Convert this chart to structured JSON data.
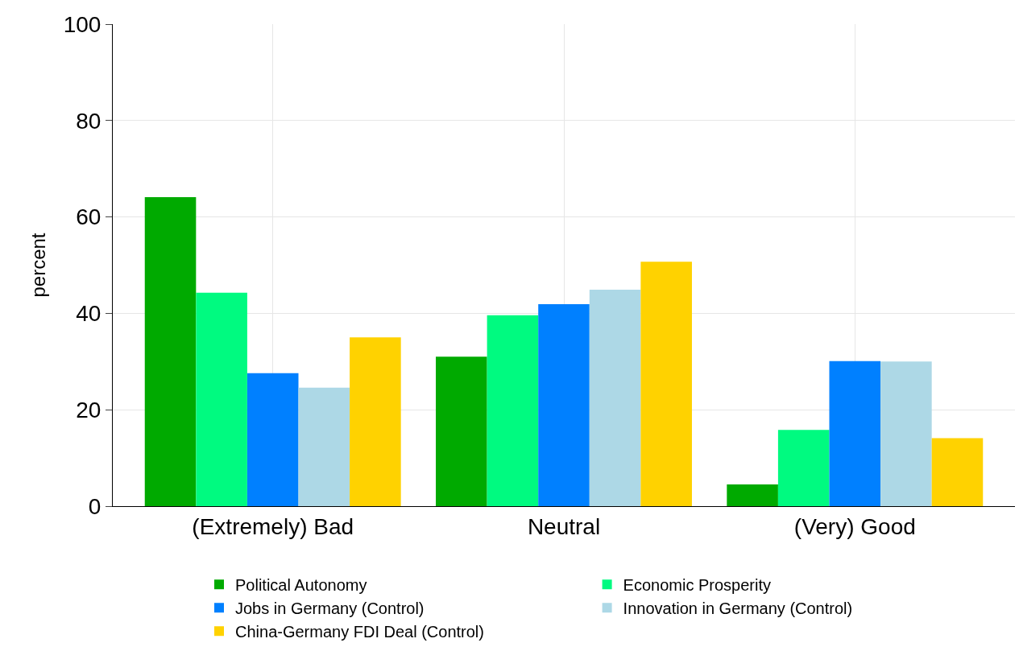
{
  "chart_data": {
    "type": "bar",
    "ylabel": "percent",
    "categories": [
      "(Extremely) Bad",
      "Neutral",
      "(Very) Good"
    ],
    "series": [
      {
        "name": "Political Autonomy",
        "color": "#00aa00",
        "values": [
          64.1,
          31.0,
          4.5
        ]
      },
      {
        "name": "Economic Prosperity",
        "color": "#00fa80",
        "values": [
          44.3,
          39.6,
          15.8
        ]
      },
      {
        "name": "Jobs in Germany (Control)",
        "color": "#0080ff",
        "values": [
          27.6,
          41.9,
          30.1
        ]
      },
      {
        "name": "Innovation in Germany (Control)",
        "color": "#add8e6",
        "values": [
          24.6,
          44.9,
          30.0
        ]
      },
      {
        "name": "China-Germany FDI Deal (Control)",
        "color": "#ffd200",
        "values": [
          35.0,
          50.7,
          14.1
        ]
      }
    ],
    "ylim": [
      0,
      100
    ],
    "yticks": [
      0,
      20,
      40,
      60,
      80,
      100
    ],
    "grid": true,
    "legend": "bottom"
  }
}
